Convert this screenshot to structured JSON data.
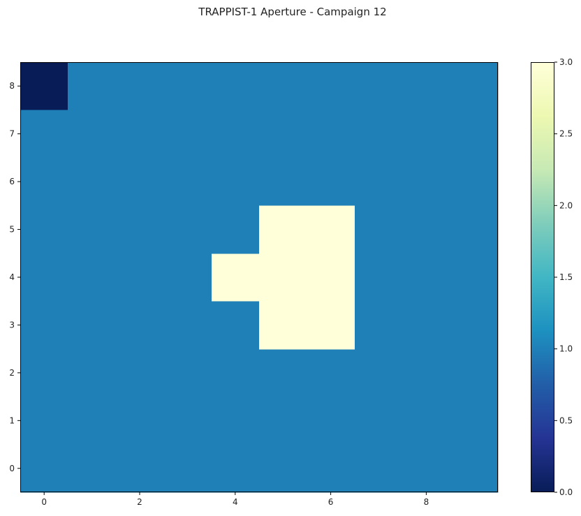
{
  "chart_data": {
    "type": "heatmap",
    "title": "TRAPPIST-1 Aperture - Campaign 12",
    "xlabel": "",
    "ylabel": "",
    "rows": 9,
    "cols": 10,
    "origin": "lower",
    "values": [
      [
        1,
        1,
        1,
        1,
        1,
        1,
        1,
        1,
        1,
        1
      ],
      [
        1,
        1,
        1,
        1,
        1,
        1,
        1,
        1,
        1,
        1
      ],
      [
        1,
        1,
        1,
        1,
        1,
        1,
        1,
        1,
        1,
        1
      ],
      [
        1,
        1,
        1,
        1,
        1,
        3,
        3,
        1,
        1,
        1
      ],
      [
        1,
        1,
        1,
        1,
        3,
        3,
        3,
        1,
        1,
        1
      ],
      [
        1,
        1,
        1,
        1,
        1,
        3,
        3,
        1,
        1,
        1
      ],
      [
        1,
        1,
        1,
        1,
        1,
        1,
        1,
        1,
        1,
        1
      ],
      [
        1,
        1,
        1,
        1,
        1,
        1,
        1,
        1,
        1,
        1
      ],
      [
        0,
        1,
        1,
        1,
        1,
        1,
        1,
        1,
        1,
        1
      ]
    ],
    "x_ticks": [
      "0",
      "2",
      "4",
      "6",
      "8"
    ],
    "y_ticks": [
      "0",
      "1",
      "2",
      "3",
      "4",
      "5",
      "6",
      "7",
      "8"
    ],
    "xlim": [
      -0.5,
      9.5
    ],
    "ylim": [
      -0.5,
      8.5
    ],
    "colormap": "YlGnBu_r",
    "color_scale": {
      "min": 0,
      "max": 3,
      "value_colors": {
        "0": "#081d58",
        "1": "#1f80b8",
        "3": "#ffffd9"
      },
      "stops": [
        "#081d58",
        "#253494",
        "#225ea8",
        "#1d91c0",
        "#41b6c4",
        "#7fcdbb",
        "#c7e9b4",
        "#edf8b1",
        "#ffffd9"
      ]
    },
    "colorbar_ticks": [
      "0.0",
      "0.5",
      "1.0",
      "1.5",
      "2.0",
      "2.5",
      "3.0"
    ],
    "grid": false
  }
}
